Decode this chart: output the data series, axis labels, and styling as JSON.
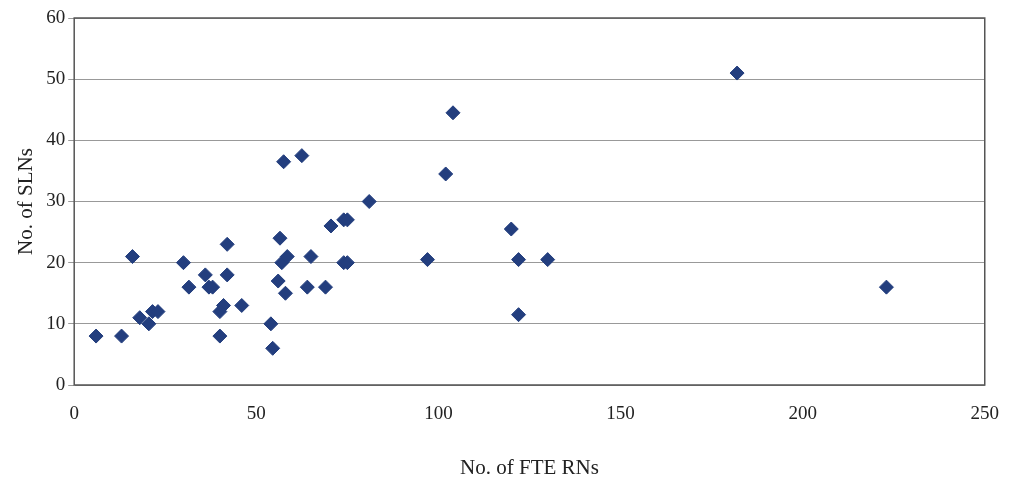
{
  "chart_data": {
    "type": "scatter",
    "xlabel": "No. of FTE RNs",
    "ylabel": "No. of SLNs",
    "x": [
      6,
      13,
      16,
      18,
      20.5,
      21.5,
      23,
      30,
      31.5,
      36,
      37,
      38,
      42,
      42,
      41,
      40,
      40,
      46,
      54,
      54.5,
      56,
      58,
      56.5,
      57,
      58.5,
      57.5,
      62.5,
      64,
      65,
      69,
      70.5,
      74,
      75,
      74,
      75,
      81,
      97,
      102,
      104,
      120,
      122,
      130,
      122,
      182,
      223
    ],
    "series": [
      {
        "color": "#233e7e",
        "values": [
          8,
          8,
          21,
          11,
          10,
          12,
          12,
          20,
          16,
          18,
          16,
          16,
          23,
          18,
          13,
          12,
          8,
          13,
          10,
          6,
          17,
          15,
          24,
          20,
          21,
          36.5,
          37.5,
          16,
          21,
          16,
          26,
          27,
          27,
          20,
          20,
          30,
          20.5,
          34.5,
          44.5,
          25.5,
          20.5,
          20.5,
          11.5,
          51,
          16
        ]
      }
    ],
    "xlim": [
      0,
      250
    ],
    "xticks": [
      0,
      50,
      100,
      150,
      200,
      250
    ],
    "ylim": [
      0,
      60
    ],
    "yticks": [
      0,
      10,
      20,
      30,
      40,
      50,
      60
    ],
    "grid": "y",
    "legend": false,
    "marker": "diamond"
  }
}
